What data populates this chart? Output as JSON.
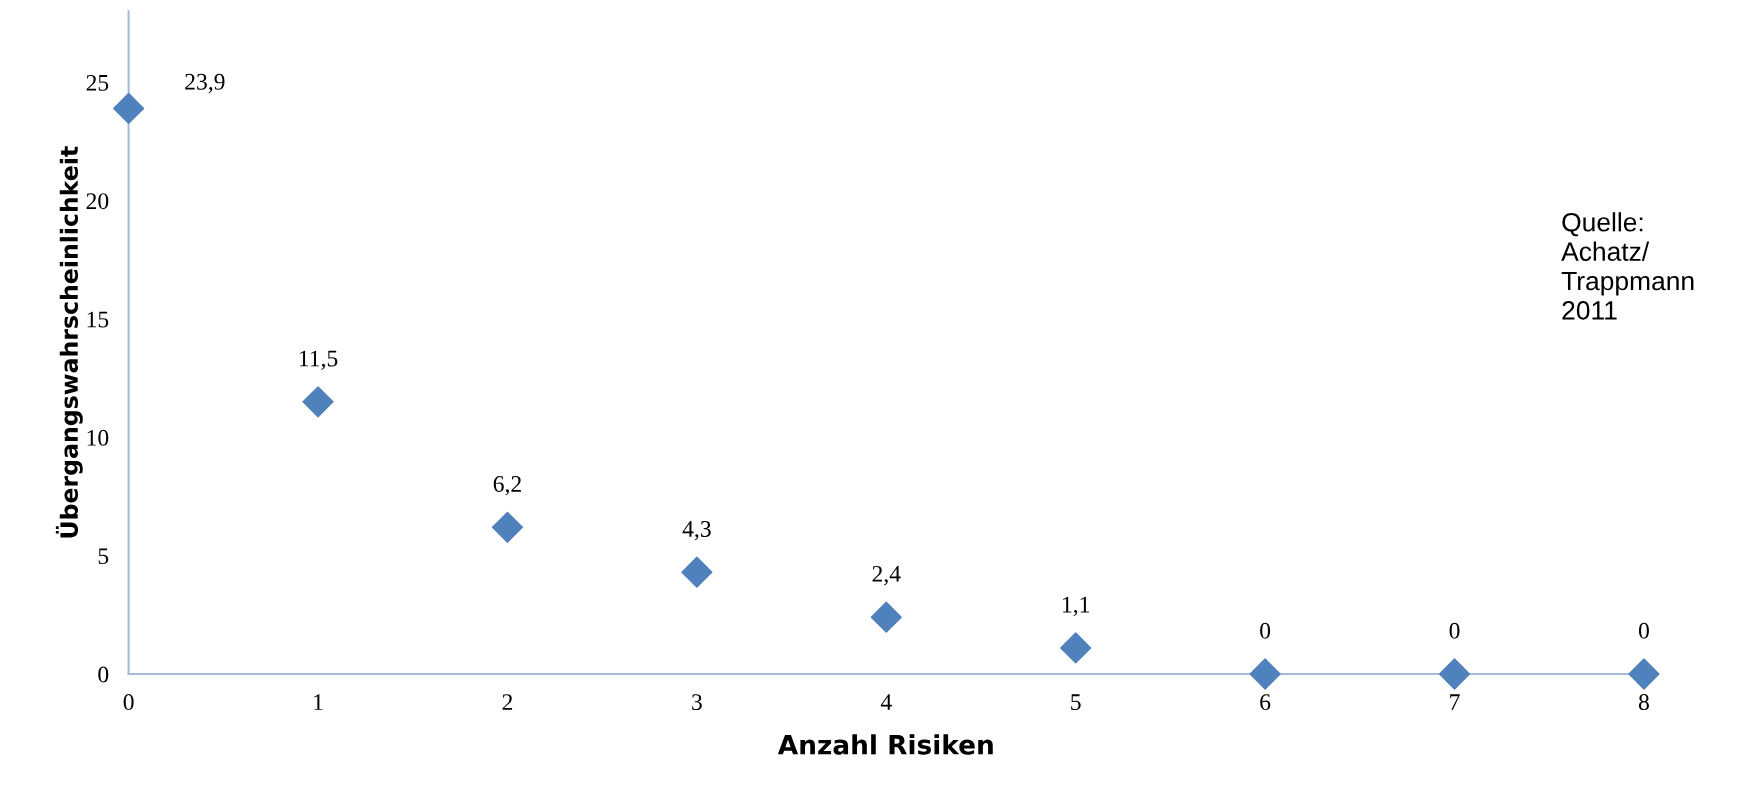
{
  "chart_data": {
    "type": "scatter",
    "xlabel": "Anzahl Risiken",
    "ylabel": "Übergangswahrscheinlichkeit",
    "x": [
      0,
      1,
      2,
      3,
      4,
      5,
      6,
      7,
      8
    ],
    "series": [
      {
        "color": "#4f81bd",
        "values": [
          23.9,
          11.5,
          6.2,
          4.3,
          2.4,
          1.1,
          0,
          0,
          0
        ],
        "value_labels": [
          "23,9",
          "11,5",
          "6,2",
          "4,3",
          "2,4",
          "1,1",
          "0",
          "0",
          "0"
        ]
      }
    ],
    "marker": "diamond",
    "xlim": [
      0,
      8
    ],
    "xticks": [
      0,
      1,
      2,
      3,
      4,
      5,
      6,
      7,
      8
    ],
    "ylim": [
      0,
      28
    ],
    "yticks": [
      0,
      5,
      10,
      15,
      20,
      25
    ],
    "grid": false,
    "legend": false,
    "annotations": [
      "Quelle:\nAchatz/\nTrappmann\n2011"
    ]
  }
}
